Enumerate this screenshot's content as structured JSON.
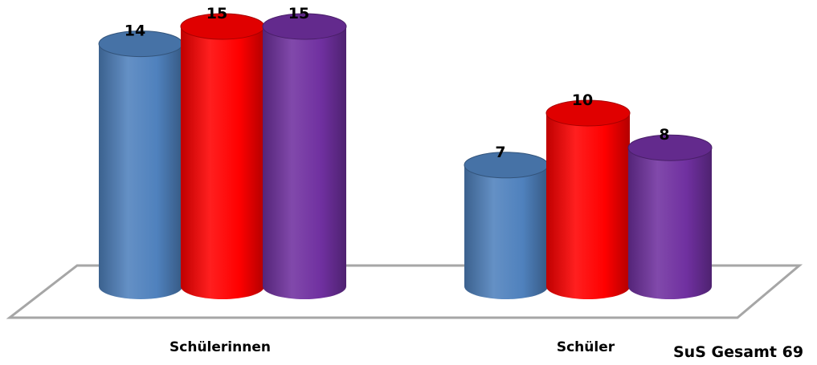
{
  "chart_data": {
    "type": "bar",
    "style": "3d-cylinder",
    "categories": [
      "Schülerinnen",
      "Schüler"
    ],
    "series": [
      {
        "values": [
          14,
          7
        ],
        "color": "#4F81BD"
      },
      {
        "values": [
          15,
          10
        ],
        "color": "#FF0000"
      },
      {
        "values": [
          15,
          8
        ],
        "color": "#7030A0"
      }
    ],
    "ylim": [
      0,
      15
    ],
    "grid": false,
    "legend": "none"
  },
  "footer": {
    "text": "SuS Gesamt 69"
  }
}
